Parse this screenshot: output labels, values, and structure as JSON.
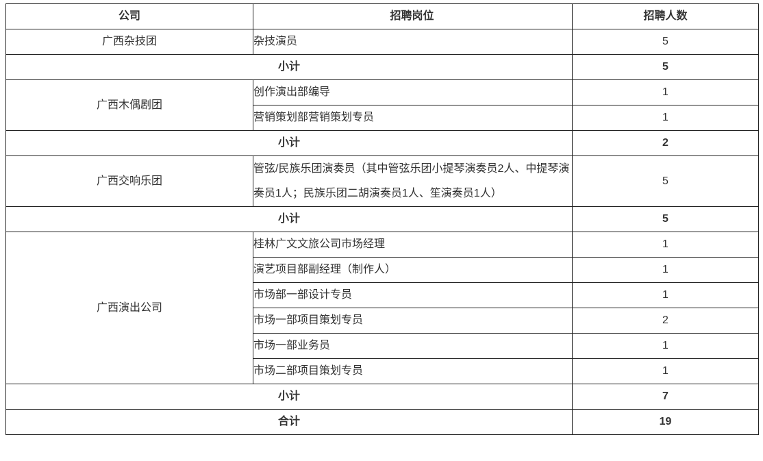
{
  "table": {
    "headers": [
      "公司",
      "招聘岗位",
      "招聘人数"
    ],
    "groups": [
      {
        "company": "广西杂技团",
        "positions": [
          {
            "title": "杂技演员",
            "count": "5"
          }
        ],
        "subtotal_label": "小计",
        "subtotal": "5"
      },
      {
        "company": "广西木偶剧团",
        "positions": [
          {
            "title": "创作演出部编导",
            "count": "1"
          },
          {
            "title": "营销策划部营销策划专员",
            "count": "1"
          }
        ],
        "subtotal_label": "小计",
        "subtotal": "2"
      },
      {
        "company": "广西交响乐团",
        "positions": [
          {
            "title": "管弦/民族乐团演奏员（其中管弦乐团小提琴演奏员2人、中提琴演奏员1人；民族乐团二胡演奏员1人、笙演奏员1人）",
            "count": "5"
          }
        ],
        "subtotal_label": "小计",
        "subtotal": "5"
      },
      {
        "company": "广西演出公司",
        "positions": [
          {
            "title": "桂林广文文旅公司市场经理",
            "count": "1"
          },
          {
            "title": "演艺项目部副经理（制作人）",
            "count": "1"
          },
          {
            "title": "市场部一部设计专员",
            "count": "1"
          },
          {
            "title": "市场一部项目策划专员",
            "count": "2"
          },
          {
            "title": "市场一部业务员",
            "count": "1"
          },
          {
            "title": "市场二部项目策划专员",
            "count": "1"
          }
        ],
        "subtotal_label": "小计",
        "subtotal": "7"
      }
    ],
    "total_label": "合计",
    "total": "19"
  }
}
